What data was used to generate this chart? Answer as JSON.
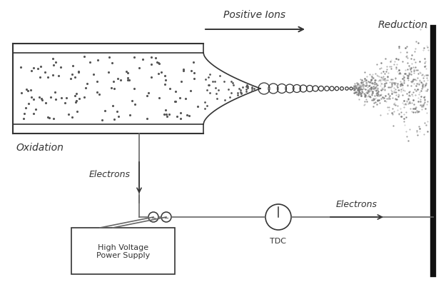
{
  "bg_color": "#ffffff",
  "lc": "#666666",
  "dc": "#333333",
  "labels": {
    "positive_ions": "Positive Ions",
    "reduction": "Reduction",
    "oxidation": "Oxidation",
    "electrons_left": "Electrons",
    "electrons_right": "Electrons",
    "tdc": "TDC",
    "hvps": "High Voltage\nPower Supply"
  },
  "figsize": [
    6.18,
    4.1
  ],
  "dpi": 100
}
